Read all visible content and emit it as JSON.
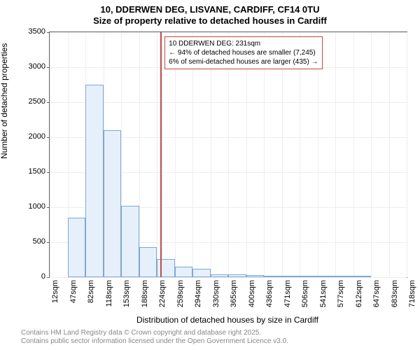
{
  "title_line1": "10, DDERWEN DEG, LISVANE, CARDIFF, CF14 0TU",
  "title_line2": "Size of property relative to detached houses in Cardiff",
  "ylabel": "Number of detached properties",
  "xlabel": "Distribution of detached houses by size in Cardiff",
  "footer_line1": "Contains HM Land Registry data © Crown copyright and database right 2025.",
  "footer_line2": "Contains public sector information licensed under the Open Government Licence v3.0.",
  "annotation": {
    "line1": "10 DDERWEN DEG: 231sqm",
    "line2": "← 94% of detached houses are smaller (7,245)",
    "line3": "6% of semi-detached houses are larger (435) →"
  },
  "chart": {
    "type": "histogram",
    "ylim": [
      0,
      3500
    ],
    "ytick_step": 500,
    "reference_value": 231,
    "x_bin_width": 35.3125,
    "x_start": 12,
    "xtick_labels": [
      "12sqm",
      "47sqm",
      "82sqm",
      "118sqm",
      "153sqm",
      "188sqm",
      "224sqm",
      "259sqm",
      "294sqm",
      "330sqm",
      "365sqm",
      "400sqm",
      "436sqm",
      "471sqm",
      "506sqm",
      "541sqm",
      "577sqm",
      "612sqm",
      "647sqm",
      "683sqm",
      "718sqm"
    ],
    "values": [
      0,
      850,
      2750,
      2100,
      1020,
      430,
      260,
      150,
      120,
      45,
      36,
      32,
      25,
      10,
      3,
      3,
      1,
      1,
      0,
      0
    ],
    "bar_fill": "#e6f0fb",
    "bar_border": "#7da7d9",
    "ref_color": "#c44",
    "title_fontsize": 13,
    "label_fontsize": 12,
    "tick_fontsize": 11,
    "footer_fontsize": 10,
    "footer_color": "#888888",
    "background_color": "#ffffff",
    "grid_color": "#eeeeee",
    "axis_color": "#666666"
  }
}
